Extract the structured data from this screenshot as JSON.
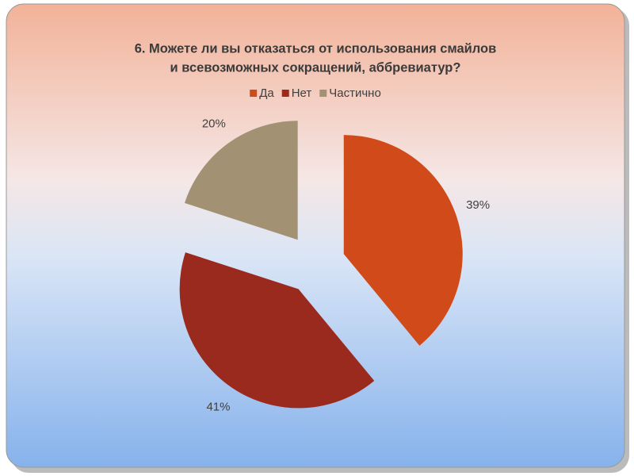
{
  "chart_data": {
    "type": "pie",
    "title": [
      "6. Можете ли вы отказаться от использования смайлов",
      "и всевозможных сокращений, аббревиатур?"
    ],
    "categories": [
      "Да",
      "Нет",
      "Частично"
    ],
    "values": [
      39,
      41,
      20
    ],
    "value_labels": [
      "39%",
      "41%",
      "20%"
    ],
    "colors": [
      "#d04a1a",
      "#9b2a1e",
      "#a39173"
    ],
    "legend": "top"
  }
}
